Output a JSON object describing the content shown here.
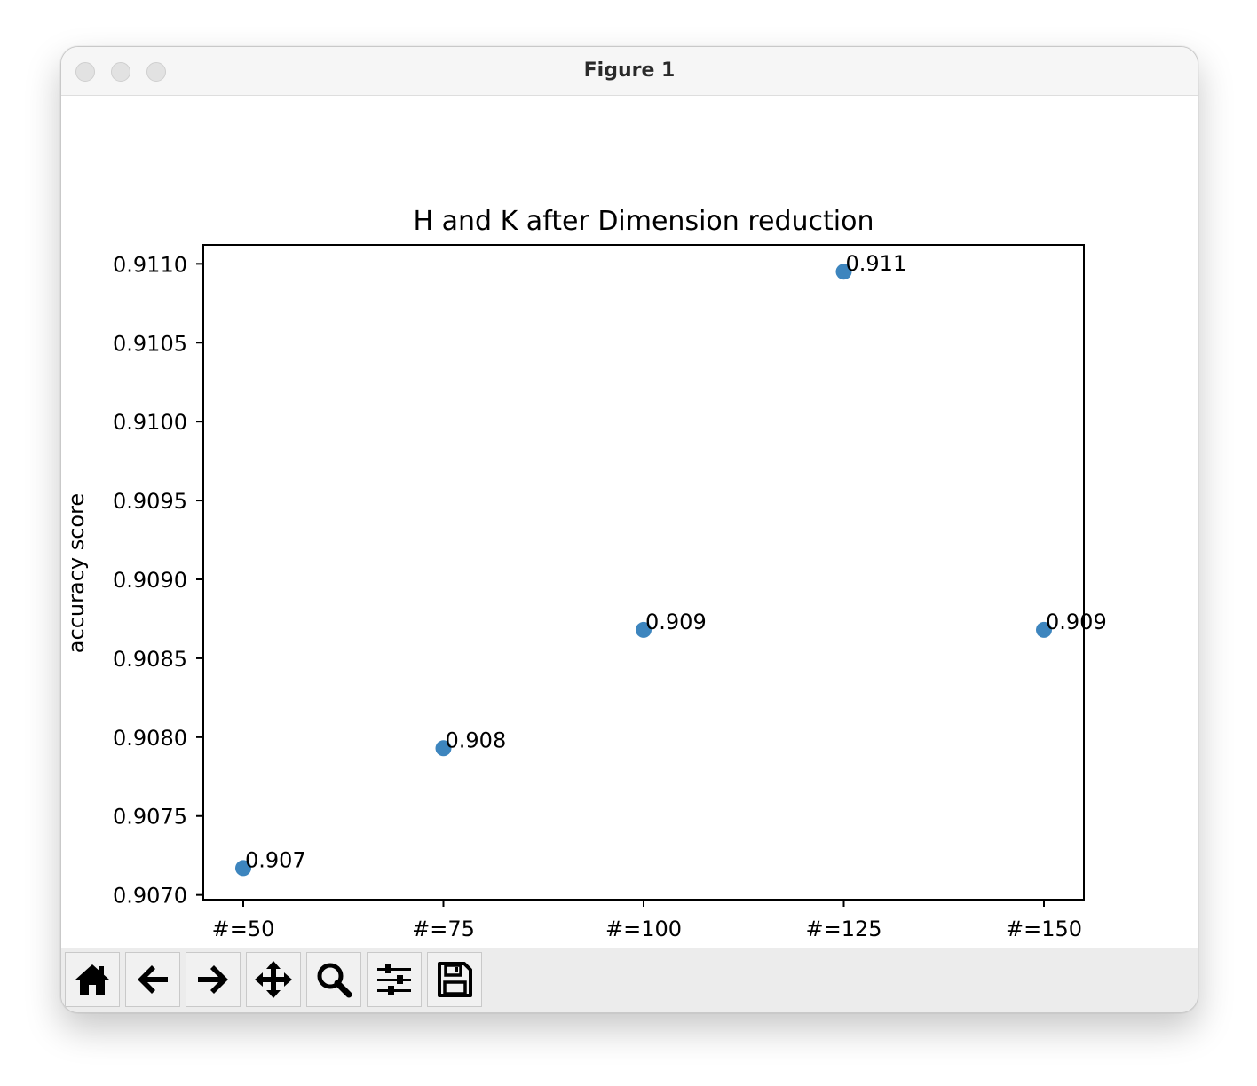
{
  "window": {
    "title": "Figure 1"
  },
  "toolbar": {
    "buttons": [
      {
        "name": "home-button",
        "icon": "home-icon"
      },
      {
        "name": "back-button",
        "icon": "arrow-left-icon"
      },
      {
        "name": "forward-button",
        "icon": "arrow-right-icon"
      },
      {
        "name": "pan-button",
        "icon": "move-icon"
      },
      {
        "name": "zoom-button",
        "icon": "magnifier-icon"
      },
      {
        "name": "configure-subplots-button",
        "icon": "sliders-icon"
      },
      {
        "name": "save-button",
        "icon": "floppy-disk-icon"
      }
    ]
  },
  "chart_data": {
    "type": "scatter",
    "title": "H and K after Dimension reduction",
    "xlabel": "",
    "ylabel": "accuracy score",
    "categories": [
      "#=50",
      "#=75",
      "#=100",
      "#=125",
      "#=150"
    ],
    "values": [
      0.90717,
      0.90793,
      0.90868,
      0.91095,
      0.90868
    ],
    "point_labels": [
      "0.907",
      "0.908",
      "0.909",
      "0.911",
      "0.909"
    ],
    "ylim": [
      0.90697,
      0.91112
    ],
    "yticks": [
      0.907,
      0.9075,
      0.908,
      0.9085,
      0.909,
      0.9095,
      0.91,
      0.9105,
      0.911
    ],
    "ytick_labels": [
      "0.9070",
      "0.9075",
      "0.9080",
      "0.9085",
      "0.9090",
      "0.9095",
      "0.9100",
      "0.9105",
      "0.9110"
    ],
    "grid": false,
    "legend": "none",
    "point_color": "#3d85be"
  }
}
